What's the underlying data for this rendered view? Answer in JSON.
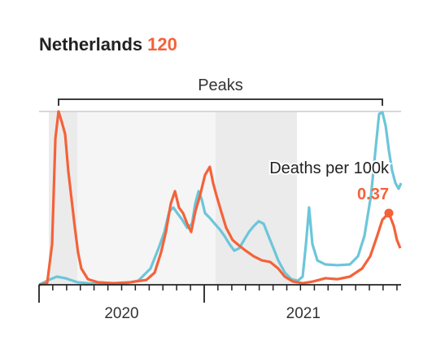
{
  "chart_data": {
    "type": "line",
    "title": "Netherlands",
    "title_number": 120,
    "annotation": "Peaks",
    "xlim": [
      2020,
      2022.192
    ],
    "ylim": [
      0,
      0.9
    ],
    "xticks": [
      {
        "value": 2020.5,
        "label": "2020"
      },
      {
        "value": 2021.6,
        "label": "2021"
      }
    ],
    "xmajor": [
      2020,
      2021
    ],
    "xminor": [
      2020.083,
      2020.167,
      2020.25,
      2020.333,
      2020.417,
      2020.5,
      2020.583,
      2020.667,
      2020.75,
      2020.833,
      2020.917,
      2021.083,
      2021.167,
      2021.25,
      2021.333,
      2021.417,
      2021.5,
      2021.583,
      2021.667,
      2021.75,
      2021.833,
      2021.917,
      2022,
      2022.083,
      2022.167
    ],
    "series": [
      {
        "color": "#6cc6d9",
        "x": [
          2020.0,
          2020.059,
          2020.108,
          2020.158,
          2020.232,
          2020.355,
          2020.502,
          2020.601,
          2020.675,
          2020.724,
          2020.759,
          2020.788,
          2020.813,
          2020.837,
          2020.867,
          2020.897,
          2020.926,
          2020.946,
          2020.966,
          2020.985,
          2021.005,
          2021.034,
          2021.064,
          2021.094,
          2021.123,
          2021.153,
          2021.182,
          2021.212,
          2021.241,
          2021.271,
          2021.3,
          2021.33,
          2021.36,
          2021.389,
          2021.419,
          2021.448,
          2021.488,
          2021.527,
          2021.567,
          2021.596,
          2021.616,
          2021.635,
          2021.655,
          2021.685,
          2021.734,
          2021.808,
          2021.882,
          2021.931,
          2021.97,
          2022.01,
          2022.039,
          2022.059,
          2022.079,
          2022.099,
          2022.118,
          2022.138,
          2022.158,
          2022.177,
          2022.192
        ],
        "values": [
          0,
          0.025,
          0.042,
          0.034,
          0.013,
          0.004,
          0.004,
          0.021,
          0.084,
          0.189,
          0.273,
          0.378,
          0.399,
          0.37,
          0.336,
          0.294,
          0.315,
          0.42,
          0.483,
          0.441,
          0.37,
          0.345,
          0.315,
          0.286,
          0.252,
          0.21,
          0.176,
          0.189,
          0.231,
          0.273,
          0.303,
          0.328,
          0.315,
          0.252,
          0.189,
          0.126,
          0.063,
          0.029,
          0.021,
          0.042,
          0.21,
          0.399,
          0.21,
          0.126,
          0.105,
          0.101,
          0.105,
          0.147,
          0.252,
          0.462,
          0.714,
          0.882,
          0.891,
          0.819,
          0.693,
          0.588,
          0.525,
          0.496,
          0.525
        ]
      },
      {
        "name": "Deaths per 100k",
        "color": "#f4623a",
        "x": [
          2020.0,
          2020.049,
          2020.079,
          2020.099,
          2020.118,
          2020.138,
          2020.158,
          2020.177,
          2020.197,
          2020.217,
          2020.236,
          2020.256,
          2020.296,
          2020.355,
          2020.453,
          2020.552,
          2020.65,
          2020.7,
          2020.739,
          2020.768,
          2020.798,
          2020.823,
          2020.847,
          2020.872,
          2020.897,
          2020.921,
          2020.946,
          2020.975,
          2021.005,
          2021.034,
          2021.054,
          2021.074,
          2021.103,
          2021.133,
          2021.172,
          2021.212,
          2021.251,
          2021.3,
          2021.35,
          2021.399,
          2021.448,
          2021.488,
          2021.537,
          2021.596,
          2021.66,
          2021.734,
          2021.808,
          2021.882,
          2021.956,
          2022.005,
          2022.044,
          2022.079,
          2022.118,
          2022.148,
          2022.167,
          2022.187
        ],
        "values": [
          0,
          0.008,
          0.21,
          0.756,
          0.895,
          0.84,
          0.777,
          0.588,
          0.441,
          0.294,
          0.168,
          0.084,
          0.029,
          0.013,
          0.008,
          0.013,
          0.025,
          0.063,
          0.168,
          0.273,
          0.42,
          0.483,
          0.399,
          0.37,
          0.315,
          0.273,
          0.378,
          0.462,
          0.567,
          0.609,
          0.525,
          0.462,
          0.378,
          0.294,
          0.231,
          0.202,
          0.176,
          0.147,
          0.126,
          0.118,
          0.084,
          0.042,
          0.017,
          0.008,
          0.017,
          0.034,
          0.029,
          0.042,
          0.084,
          0.147,
          0.244,
          0.336,
          0.37,
          0.303,
          0.231,
          0.189
        ],
        "value_labels": [
          null,
          null,
          null,
          null,
          null,
          null,
          null,
          null,
          null,
          null,
          null,
          null,
          null,
          null,
          null,
          null,
          null,
          null,
          null,
          null,
          null,
          null,
          null,
          null,
          null,
          null,
          null,
          null,
          null,
          null,
          null,
          null,
          null,
          null,
          null,
          null,
          null,
          null,
          null,
          null,
          null,
          null,
          null,
          null,
          null,
          null,
          null,
          null,
          null,
          null,
          null,
          null,
          "0.37",
          null,
          null,
          null
        ]
      }
    ]
  }
}
